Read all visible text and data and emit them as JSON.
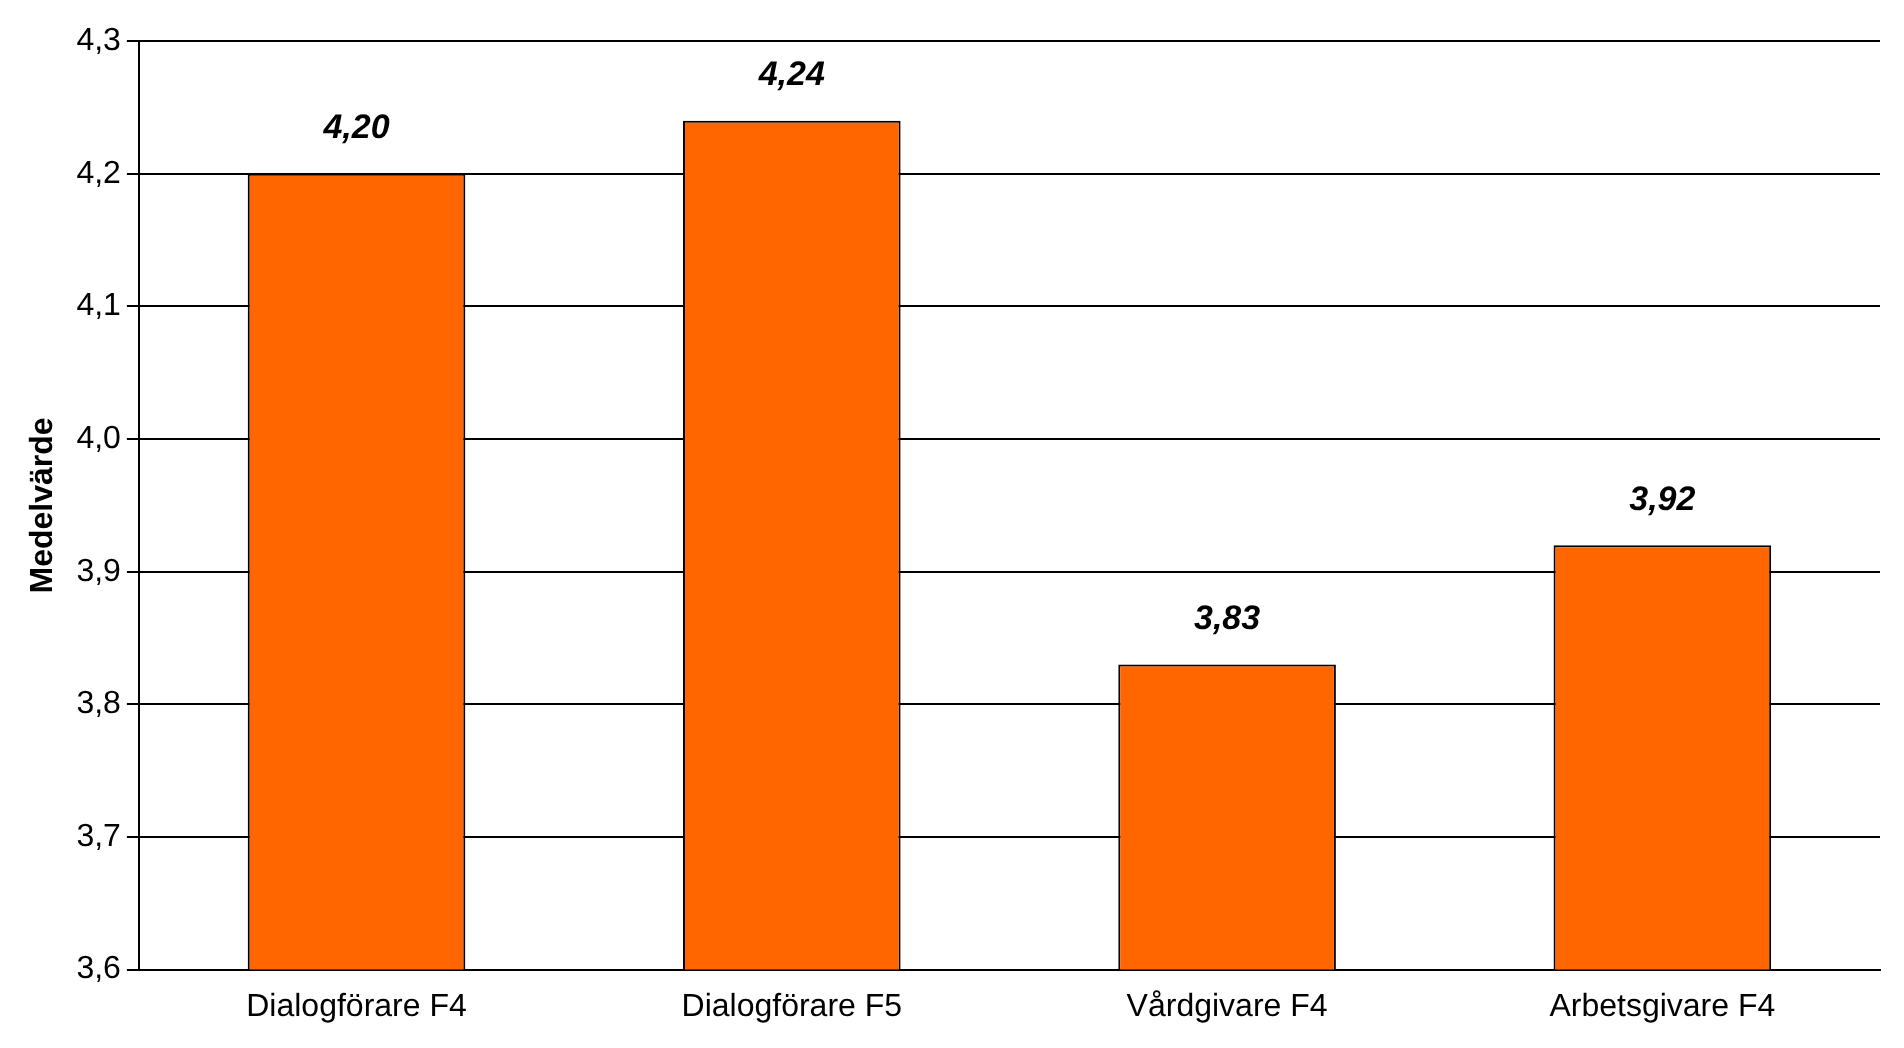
{
  "chart_data": {
    "type": "bar",
    "ylabel": "Medelvärde",
    "categories": [
      "Dialogförare F4",
      "Dialogförare F5",
      "Vårdgivare F4",
      "Arbetsgivare F4"
    ],
    "values": [
      4.2,
      4.24,
      3.83,
      3.92
    ],
    "color": "#ff6600",
    "value_labels": [
      "4,20",
      "4,24",
      "3,83",
      "3,92"
    ],
    "ylim": [
      3.6,
      4.3
    ],
    "yticks": [
      {
        "value": 3.6,
        "label": "3,6"
      },
      {
        "value": 3.7,
        "label": "3,7"
      },
      {
        "value": 3.8,
        "label": "3,8"
      },
      {
        "value": 3.9,
        "label": "3,9"
      },
      {
        "value": 4.0,
        "label": "4,0"
      },
      {
        "value": 4.1,
        "label": "4,1"
      },
      {
        "value": 4.2,
        "label": "4,2"
      },
      {
        "value": 4.3,
        "label": "4,3"
      }
    ],
    "grid": "y",
    "legend": false
  }
}
